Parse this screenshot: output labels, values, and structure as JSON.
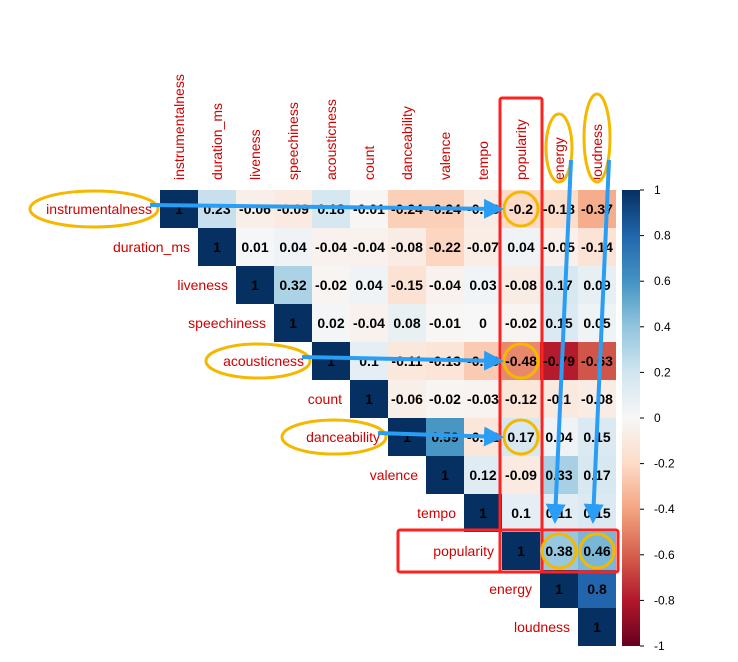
{
  "chart_data": {
    "type": "heatmap",
    "variables": [
      "instrumentalness",
      "duration_ms",
      "liveness",
      "speechiness",
      "acousticness",
      "count",
      "danceability",
      "valence",
      "tempo",
      "popularity",
      "energy",
      "loudness"
    ],
    "rows": [
      [
        "1",
        "0.23",
        "-0.06",
        "-0.09",
        "0.18",
        "-0.01",
        "-0.24",
        "-0.24",
        "-0.08",
        "-0.2",
        "-0.18",
        "-0.37"
      ],
      [
        null,
        "1",
        "0.01",
        "0.04",
        "-0.04",
        "-0.04",
        "-0.08",
        "-0.22",
        "-0.07",
        "0.04",
        "-0.05",
        "-0.14"
      ],
      [
        null,
        null,
        "1",
        "0.32",
        "-0.02",
        "0.04",
        "-0.15",
        "-0.04",
        "0.03",
        "-0.08",
        "0.17",
        "0.09"
      ],
      [
        null,
        null,
        null,
        "1",
        "0.02",
        "-0.04",
        "0.08",
        "-0.01",
        "0",
        "-0.02",
        "0.15",
        "0.05"
      ],
      [
        null,
        null,
        null,
        null,
        "1",
        "0.1",
        "-0.11",
        "-0.13",
        "-0.26",
        "-0.48",
        "-0.79",
        "-0.63"
      ],
      [
        null,
        null,
        null,
        null,
        null,
        "1",
        "-0.06",
        "-0.02",
        "-0.03",
        "-0.12",
        "-0.1",
        "-0.08"
      ],
      [
        null,
        null,
        null,
        null,
        null,
        null,
        "1",
        "0.59",
        "-0.12",
        "0.17",
        "0.04",
        "0.15"
      ],
      [
        null,
        null,
        null,
        null,
        null,
        null,
        null,
        "1",
        "0.12",
        "-0.09",
        "0.33",
        "0.17"
      ],
      [
        null,
        null,
        null,
        null,
        null,
        null,
        null,
        null,
        "1",
        "0.1",
        "0.11",
        "0.15"
      ],
      [
        null,
        null,
        null,
        null,
        null,
        null,
        null,
        null,
        null,
        "1",
        "0.38",
        "0.46"
      ],
      [
        null,
        null,
        null,
        null,
        null,
        null,
        null,
        null,
        null,
        null,
        "1",
        "0.8"
      ],
      [
        null,
        null,
        null,
        null,
        null,
        null,
        null,
        null,
        null,
        null,
        null,
        "1"
      ]
    ],
    "colorbar": {
      "range": [
        -1,
        1
      ],
      "ticks": [
        "1",
        "0.8",
        "0.6",
        "0.4",
        "0.2",
        "0",
        "-0.2",
        "-0.4",
        "-0.6",
        "-0.8",
        "-1"
      ],
      "high_color": "#053061",
      "mid_color": "#f7f7f7",
      "low_color": "#67001f"
    },
    "label_color": "#d10000",
    "annotations": {
      "highlight_box_color": "#ff2020",
      "circle_color": "#f5b800",
      "arrow_color": "#2a9df4",
      "highlighted_column": "popularity",
      "highlighted_row": "popularity",
      "circled_labels": [
        "instrumentalness",
        "acousticness",
        "danceability",
        "energy",
        "loudness"
      ],
      "circled_cells": [
        {
          "row": "instrumentalness",
          "col": "popularity"
        },
        {
          "row": "acousticness",
          "col": "popularity"
        },
        {
          "row": "danceability",
          "col": "popularity"
        },
        {
          "row": "popularity",
          "col": "energy"
        },
        {
          "row": "popularity",
          "col": "loudness"
        }
      ]
    }
  }
}
